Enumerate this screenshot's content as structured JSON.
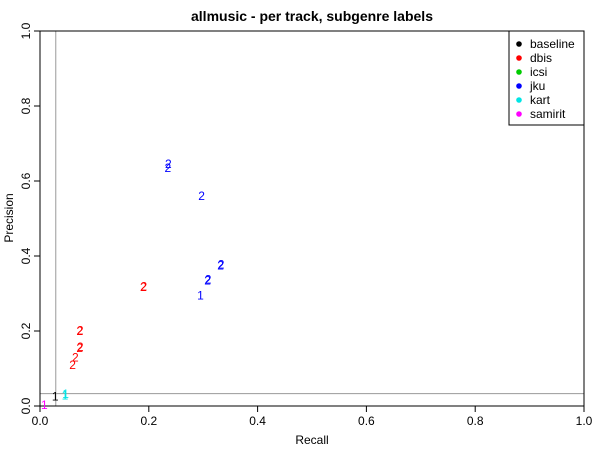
{
  "chart_data": {
    "type": "scatter",
    "title": "allmusic - per track, subgenre labels",
    "xlabel": "Recall",
    "ylabel": "Precision",
    "xlim": [
      0,
      1
    ],
    "ylim": [
      0,
      1
    ],
    "x_ticks": [
      "0.0",
      "0.2",
      "0.4",
      "0.6",
      "0.8",
      "1.0"
    ],
    "y_ticks": [
      "0.0",
      "0.2",
      "0.4",
      "0.6",
      "0.8",
      "1.0"
    ],
    "reference_lines": {
      "vertical_x": 0.029,
      "horizontal_y": 0.033
    },
    "legend": {
      "placement": "top-right"
    },
    "series": [
      {
        "name": "baseline",
        "color": "#000000",
        "points": [
          {
            "x": 0.028,
            "y": 0.025,
            "label": "1"
          }
        ]
      },
      {
        "name": "dbis",
        "color": "#ff0000",
        "points": [
          {
            "x": 0.06,
            "y": 0.11,
            "label": "2"
          },
          {
            "x": 0.065,
            "y": 0.13,
            "label": "2"
          },
          {
            "x": 0.073,
            "y": 0.155,
            "label": "2"
          },
          {
            "x": 0.074,
            "y": 0.158,
            "label": "2"
          },
          {
            "x": 0.073,
            "y": 0.2,
            "label": "2"
          },
          {
            "x": 0.074,
            "y": 0.202,
            "label": "2"
          },
          {
            "x": 0.19,
            "y": 0.317,
            "label": "2"
          },
          {
            "x": 0.191,
            "y": 0.319,
            "label": "2"
          }
        ]
      },
      {
        "name": "icsi",
        "color": "#00cc00",
        "points": []
      },
      {
        "name": "jku",
        "color": "#0000ff",
        "points": [
          {
            "x": 0.295,
            "y": 0.295,
            "label": "1"
          },
          {
            "x": 0.308,
            "y": 0.335,
            "label": "2"
          },
          {
            "x": 0.309,
            "y": 0.338,
            "label": "2"
          },
          {
            "x": 0.332,
            "y": 0.375,
            "label": "2"
          },
          {
            "x": 0.333,
            "y": 0.378,
            "label": "2"
          },
          {
            "x": 0.297,
            "y": 0.56,
            "label": "2"
          },
          {
            "x": 0.235,
            "y": 0.635,
            "label": "2"
          },
          {
            "x": 0.236,
            "y": 0.645,
            "label": "2"
          }
        ]
      },
      {
        "name": "kart",
        "color": "#00e5e5",
        "points": [
          {
            "x": 0.046,
            "y": 0.028,
            "label": "1"
          },
          {
            "x": 0.047,
            "y": 0.032,
            "label": "1"
          }
        ]
      },
      {
        "name": "samirit",
        "color": "#ff00ff",
        "points": [
          {
            "x": 0.008,
            "y": 0.003,
            "label": "1"
          }
        ]
      }
    ]
  }
}
